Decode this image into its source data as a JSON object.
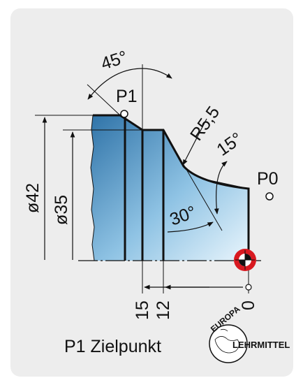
{
  "diagram": {
    "angles": {
      "a45": "45°",
      "a15": "15°",
      "a30": "30°"
    },
    "radius": "R5,5",
    "points": {
      "p1": "P1",
      "p0": "P0"
    },
    "diameters": {
      "d42": "ø42",
      "d35": "ø35"
    },
    "z_dims": {
      "z15": "15",
      "z12": "12",
      "z0": "0"
    },
    "caption": "P1 Zielpunkt",
    "logo": {
      "line1": "EUROPA",
      "line2": "LEHRMITTEL"
    }
  }
}
